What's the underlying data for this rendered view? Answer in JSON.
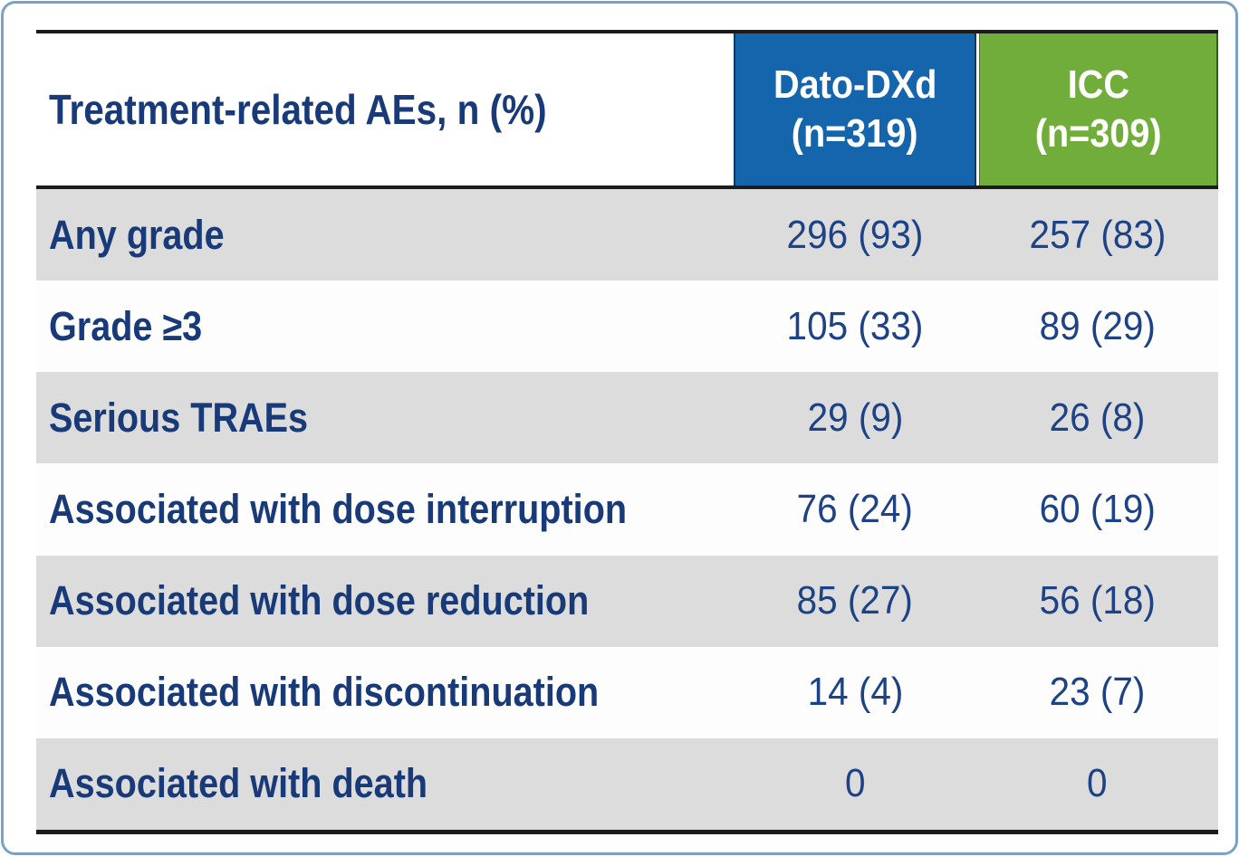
{
  "frame": {
    "border_color": "#7aa2c6"
  },
  "table": {
    "title_header": "Treatment-related AEs, n (%)",
    "column_headers": [
      {
        "name": "Dato-DXd",
        "n_label": "(n=319)",
        "bg_color": "#1565ad"
      },
      {
        "name": "ICC",
        "n_label": "(n=309)",
        "bg_color": "#71ad3b"
      }
    ],
    "rows": [
      {
        "label": "Any grade",
        "dato_dxd": "296 (93)",
        "icc": "257 (83)"
      },
      {
        "label": "Grade ≥3",
        "dato_dxd": "105 (33)",
        "icc": "89 (29)"
      },
      {
        "label": "Serious TRAEs",
        "dato_dxd": "29 (9)",
        "icc": "26 (8)"
      },
      {
        "label": "Associated with dose interruption",
        "dato_dxd": "76 (24)",
        "icc": "60 (19)"
      },
      {
        "label": "Associated with dose reduction",
        "dato_dxd": "85 (27)",
        "icc": "56 (18)"
      },
      {
        "label": "Associated with discontinuation",
        "dato_dxd": "14 (4)",
        "icc": "23 (7)"
      },
      {
        "label": "Associated with death",
        "dato_dxd": "0",
        "icc": "0"
      }
    ],
    "colors": {
      "header_blue": "#1565ad",
      "header_green": "#71ad3b",
      "text_navy_bold": "#183a78",
      "text_navy_value": "#1d4285",
      "row_gray": "#dcdcdc",
      "row_white": "#fdfdfd",
      "border_black": "#1b1b1b"
    }
  }
}
